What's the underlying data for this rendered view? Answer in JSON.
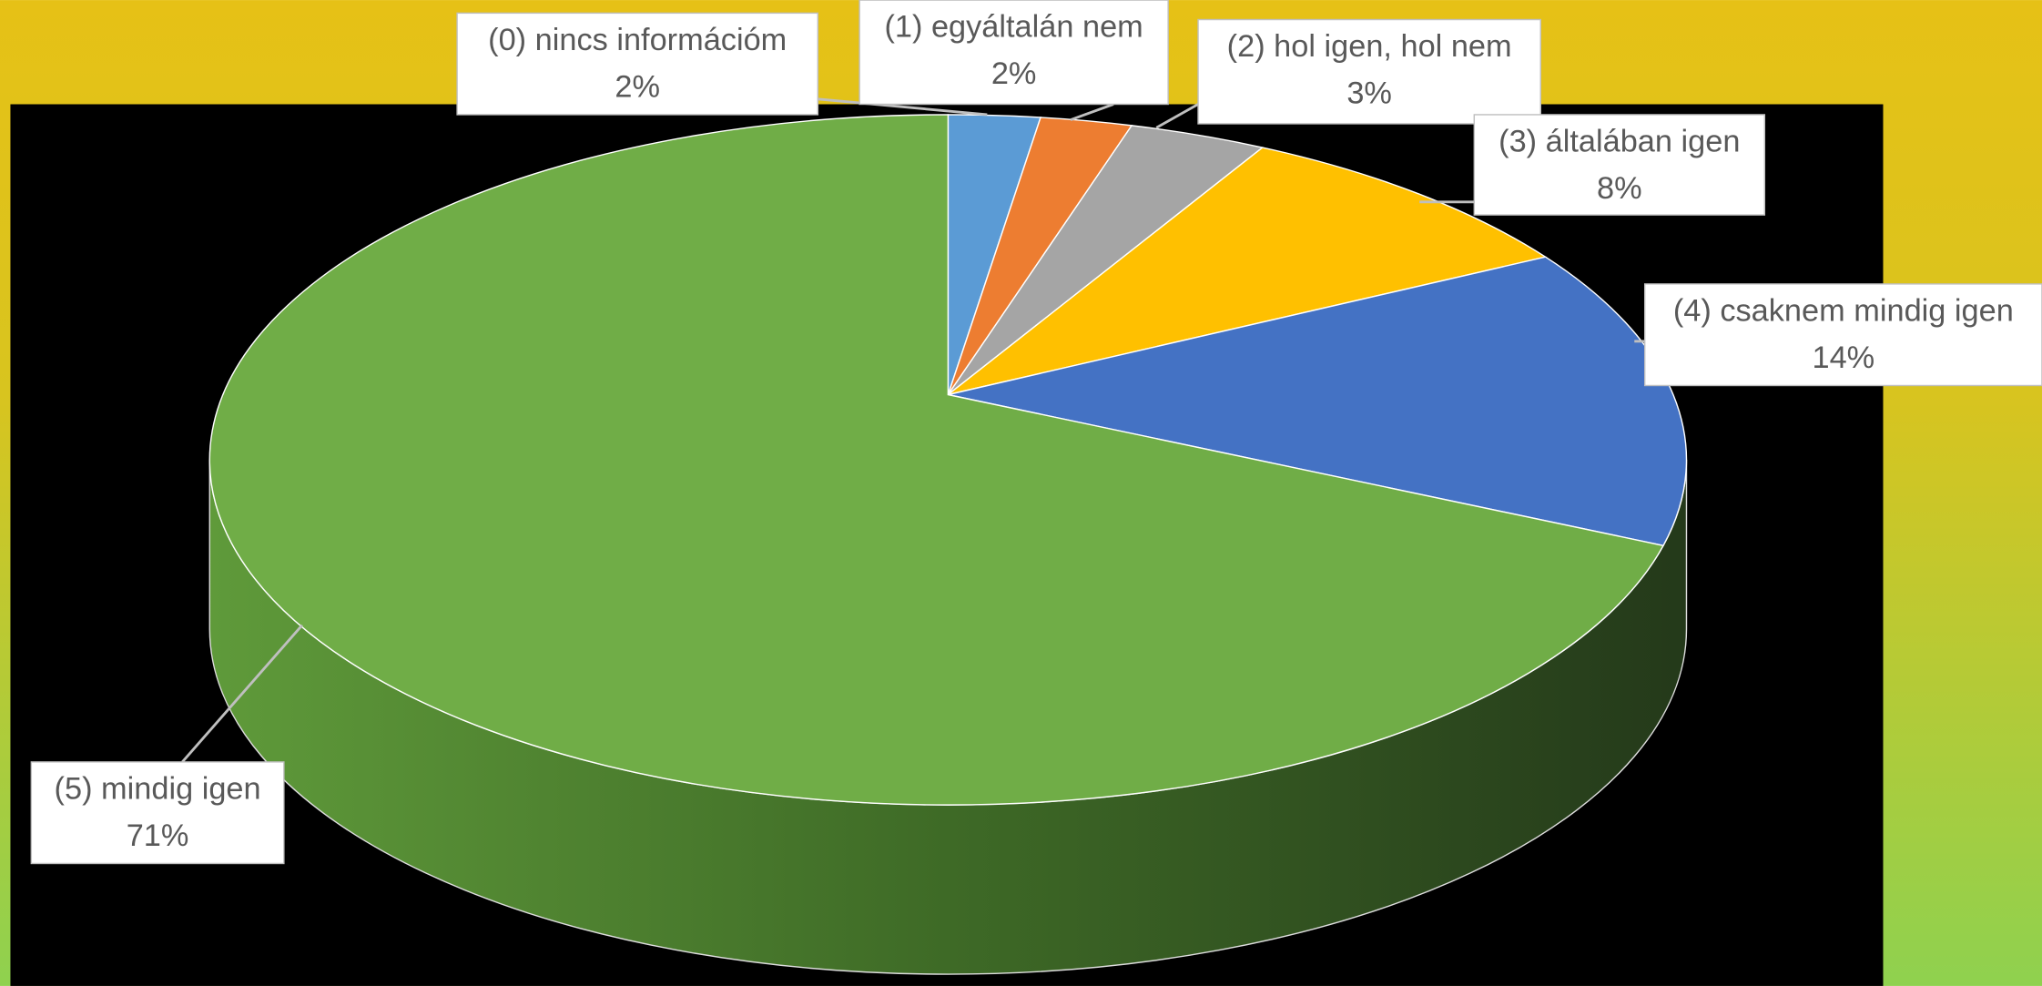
{
  "chart_data": {
    "type": "pie",
    "categories": [
      "(0) nincs információm",
      "(1) egyáltalán nem",
      "(2) hol igen, hol nem",
      "(3) általában igen",
      "(4) csaknem mindig igen",
      "(5) mindig igen"
    ],
    "values": [
      2,
      2,
      3,
      8,
      14,
      71
    ],
    "value_labels": [
      "2%",
      "2%",
      "3%",
      "8%",
      "14%",
      "71%"
    ],
    "colors": [
      "#5b9bd5",
      "#ed7d31",
      "#a5a5a5",
      "#ffc000",
      "#4472c4",
      "#70ad47"
    ]
  }
}
